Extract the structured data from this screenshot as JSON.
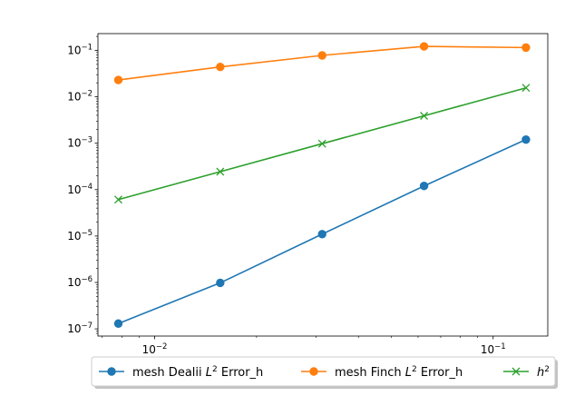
{
  "chart_data": {
    "type": "line",
    "xscale": "log",
    "yscale": "log",
    "xlim": [
      0.0068,
      0.145
    ],
    "ylim": [
      7e-08,
      0.23
    ],
    "x_ticks": [
      {
        "value": 0.01,
        "base": "10",
        "exp": "−2"
      },
      {
        "value": 0.1,
        "base": "10",
        "exp": "−1"
      }
    ],
    "x_minor_ticks": [
      0.007,
      0.008,
      0.009,
      0.02,
      0.03,
      0.04,
      0.05,
      0.06,
      0.07,
      0.08,
      0.09
    ],
    "y_ticks": [
      {
        "value": 1e-07,
        "base": "10",
        "exp": "−7"
      },
      {
        "value": 1e-06,
        "base": "10",
        "exp": "−6"
      },
      {
        "value": 1e-05,
        "base": "10",
        "exp": "−5"
      },
      {
        "value": 0.0001,
        "base": "10",
        "exp": "−4"
      },
      {
        "value": 0.001,
        "base": "10",
        "exp": "−3"
      },
      {
        "value": 0.01,
        "base": "10",
        "exp": "−2"
      },
      {
        "value": 0.1,
        "base": "10",
        "exp": "−1"
      }
    ],
    "x": [
      0.0078125,
      0.015625,
      0.03125,
      0.0625,
      0.125
    ],
    "series": [
      {
        "name_parts": [
          "mesh Dealii ",
          "L",
          "2",
          " Error_h"
        ],
        "color": "#1f77b4",
        "marker": "circle",
        "values": [
          1.3e-07,
          9.8e-07,
          1.1e-05,
          0.00012,
          0.0012
        ]
      },
      {
        "name_parts": [
          "mesh Finch ",
          "L",
          "2",
          " Error_h"
        ],
        "color": "#ff7f0e",
        "marker": "circle",
        "values": [
          0.023,
          0.044,
          0.078,
          0.122,
          0.115
        ]
      },
      {
        "name_parts": [
          "",
          "h",
          "2",
          ""
        ],
        "color": "#2ca02c",
        "marker": "x",
        "values": [
          6.1e-05,
          0.000244,
          0.000977,
          0.0039,
          0.0156
        ]
      }
    ],
    "legend_position": "below-plot",
    "grid": false
  }
}
